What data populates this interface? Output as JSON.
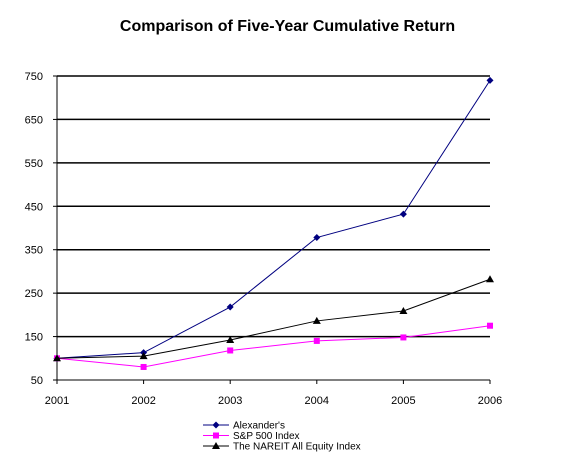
{
  "chart_data": {
    "type": "line",
    "title": "Comparison of Five-Year Cumulative Return",
    "xlabel": "",
    "ylabel": "",
    "x": [
      "2001",
      "2002",
      "2003",
      "2004",
      "2005",
      "2006"
    ],
    "ylim": [
      50,
      750
    ],
    "yticks": [
      50,
      150,
      250,
      350,
      450,
      550,
      650,
      750
    ],
    "grid": true,
    "legend_position": "bottom-center",
    "series": [
      {
        "name": "Alexander's",
        "values": [
          100,
          113,
          218,
          378,
          432,
          740
        ],
        "color": "#000080",
        "marker": "diamond"
      },
      {
        "name": "S&P 500 Index",
        "values": [
          100,
          80,
          118,
          140,
          148,
          175
        ],
        "color": "#ff00ff",
        "marker": "square"
      },
      {
        "name": "The NAREIT All Equity Index",
        "values": [
          100,
          105,
          142,
          186,
          209,
          282
        ],
        "color": "#000000",
        "marker": "triangle"
      }
    ]
  }
}
